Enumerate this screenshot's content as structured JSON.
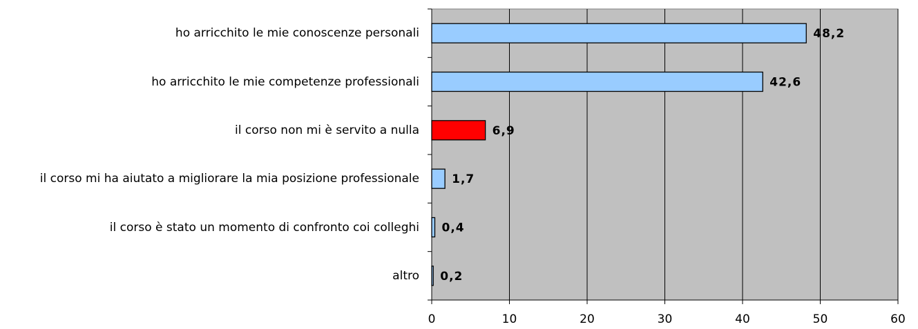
{
  "chart_data": {
    "type": "bar",
    "orientation": "horizontal",
    "categories": [
      "ho arricchito le mie conoscenze personali",
      "ho arricchito le mie competenze professionali",
      "il corso non mi è servito a nulla",
      "il corso mi ha aiutato a migliorare la mia posizione professionale",
      "il corso è stato un momento di confronto coi colleghi",
      "altro"
    ],
    "values": [
      48.2,
      42.6,
      6.9,
      1.7,
      0.4,
      0.2
    ],
    "value_labels": [
      "48,2",
      "42,6",
      "6,9",
      "1,7",
      "0,4",
      "0,2"
    ],
    "colors": [
      "#99ccff",
      "#99ccff",
      "#ff0000",
      "#99ccff",
      "#99ccff",
      "#99ccff"
    ],
    "xlim": [
      0,
      60
    ],
    "xticks": [
      0,
      10,
      20,
      30,
      40,
      50,
      60
    ],
    "grid": true
  }
}
